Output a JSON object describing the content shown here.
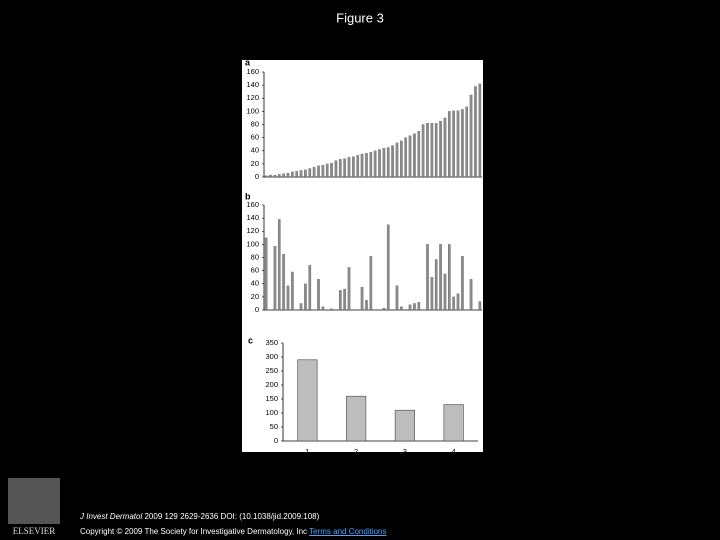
{
  "slide_title": "Figure 3",
  "footer": {
    "journal": "J Invest Dermatol",
    "citation": "2009 129 2629-2636 DOI: (10.1038/jid.2009.108)",
    "copyright": "Copyright © 2009 The Society for Investigative Dermatology, Inc",
    "link": "Terms and Conditions"
  },
  "logo": "ELSEVIER",
  "chart_data": [
    {
      "type": "bar",
      "panel": "a",
      "color": "#8a8a8a",
      "values": [
        2,
        3,
        3,
        4,
        5,
        6,
        8,
        9,
        10,
        11,
        13,
        15,
        17,
        18,
        20,
        21,
        25,
        27,
        28,
        30,
        31,
        33,
        35,
        36,
        38,
        40,
        42,
        44,
        45,
        48,
        52,
        55,
        60,
        63,
        66,
        70,
        80,
        82,
        82,
        82,
        85,
        90,
        100,
        101,
        101,
        103,
        107,
        125,
        138,
        142
      ],
      "ylim": [
        0,
        160
      ],
      "yticks": [
        0,
        20,
        40,
        60,
        80,
        100,
        120,
        140,
        160
      ]
    },
    {
      "type": "bar",
      "panel": "b",
      "color": "#8a8a8a",
      "values": [
        110,
        0,
        97,
        138,
        85,
        37,
        58,
        0,
        10,
        40,
        68,
        0,
        47,
        5,
        0,
        2,
        0,
        30,
        32,
        65,
        0,
        0,
        35,
        15,
        82,
        0,
        0,
        3,
        130,
        0,
        37,
        5,
        0,
        8,
        10,
        12,
        0,
        100,
        50,
        77,
        100,
        55,
        100,
        20,
        25,
        82,
        0,
        47,
        0,
        13
      ],
      "ylim": [
        0,
        160
      ],
      "yticks": [
        0,
        20,
        40,
        60,
        80,
        100,
        120,
        140,
        160
      ]
    },
    {
      "type": "bar",
      "panel": "c",
      "color": "#bdbdbd",
      "categories": [
        "1",
        "2",
        "3",
        "4"
      ],
      "values": [
        290,
        160,
        110,
        130
      ],
      "ylim": [
        0,
        350
      ],
      "yticks": [
        0,
        50,
        100,
        150,
        200,
        250,
        300,
        350
      ]
    }
  ]
}
